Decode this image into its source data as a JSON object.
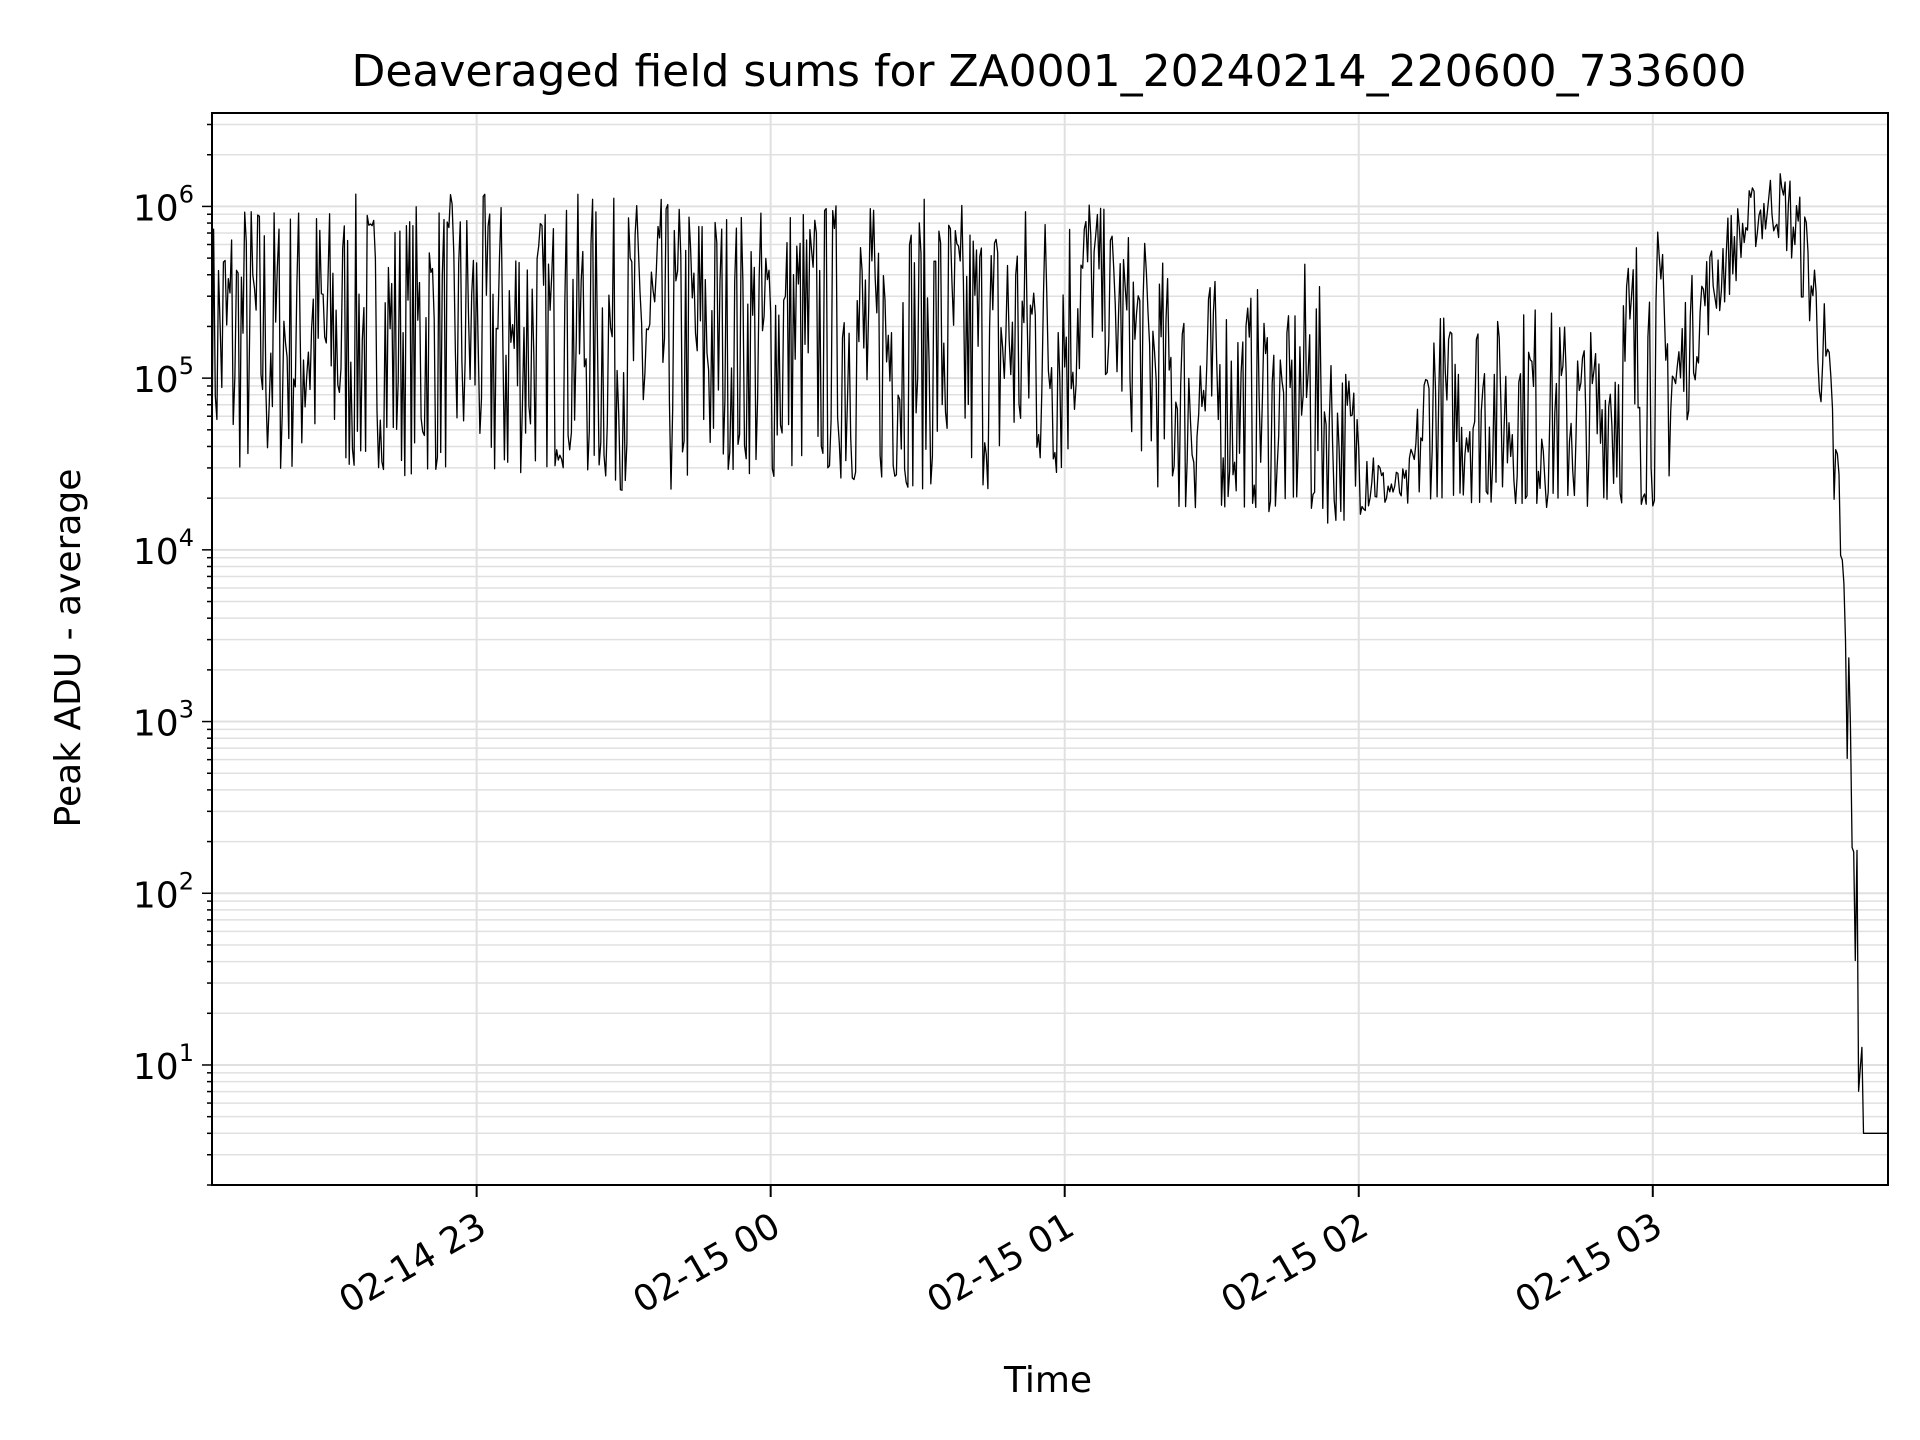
{
  "chart_data": {
    "type": "line",
    "title": "Deaveraged field sums for ZA0001_20240214_220600_733600",
    "xlabel": "Time",
    "ylabel": "Peak ADU - average",
    "yscale": "log",
    "ylim": [
      2,
      3500000
    ],
    "xlim": [
      "2024-02-14 22:06",
      "2024-02-15 03:48"
    ],
    "grid": true,
    "line_color": "#000000",
    "grid_color": "#e0e0e0",
    "x_ticks": [
      {
        "value": "2024-02-14 23:00",
        "label": "02-14 23"
      },
      {
        "value": "2024-02-15 00:00",
        "label": "02-15 00"
      },
      {
        "value": "2024-02-15 01:00",
        "label": "02-15 01"
      },
      {
        "value": "2024-02-15 02:00",
        "label": "02-15 02"
      },
      {
        "value": "2024-02-15 03:00",
        "label": "02-15 03"
      }
    ],
    "y_ticks": [
      {
        "value": 10,
        "base": "10",
        "exp": "1"
      },
      {
        "value": 100,
        "base": "10",
        "exp": "2"
      },
      {
        "value": 1000,
        "base": "10",
        "exp": "3"
      },
      {
        "value": 10000,
        "base": "10",
        "exp": "4"
      },
      {
        "value": 100000,
        "base": "10",
        "exp": "5"
      },
      {
        "value": 1000000,
        "base": "10",
        "exp": "6"
      }
    ],
    "series": [
      {
        "x": [
          "2024-02-14 22:06",
          "2024-02-14 22:10",
          "2024-02-14 22:15",
          "2024-02-14 22:20",
          "2024-02-14 22:25",
          "2024-02-14 22:30",
          "2024-02-14 22:35",
          "2024-02-14 22:40",
          "2024-02-14 22:45",
          "2024-02-14 22:50",
          "2024-02-14 22:55",
          "2024-02-14 23:00",
          "2024-02-14 23:05",
          "2024-02-14 23:10",
          "2024-02-14 23:15",
          "2024-02-14 23:20",
          "2024-02-14 23:25",
          "2024-02-14 23:30",
          "2024-02-14 23:35",
          "2024-02-14 23:40",
          "2024-02-14 23:45",
          "2024-02-14 23:50",
          "2024-02-14 23:55",
          "2024-02-15 00:00",
          "2024-02-15 00:05",
          "2024-02-15 00:10",
          "2024-02-15 00:15",
          "2024-02-15 00:20",
          "2024-02-15 00:25",
          "2024-02-15 00:30",
          "2024-02-15 00:35",
          "2024-02-15 00:40",
          "2024-02-15 00:45",
          "2024-02-15 00:50",
          "2024-02-15 00:55",
          "2024-02-15 01:00",
          "2024-02-15 01:05",
          "2024-02-15 01:10",
          "2024-02-15 01:15",
          "2024-02-15 01:20",
          "2024-02-15 01:25",
          "2024-02-15 01:30",
          "2024-02-15 01:35",
          "2024-02-15 01:40",
          "2024-02-15 01:45",
          "2024-02-15 01:50",
          "2024-02-15 01:55",
          "2024-02-15 02:00",
          "2024-02-15 02:05",
          "2024-02-15 02:10",
          "2024-02-15 02:15",
          "2024-02-15 02:20",
          "2024-02-15 02:25",
          "2024-02-15 02:30",
          "2024-02-15 02:35",
          "2024-02-15 02:40",
          "2024-02-15 02:45",
          "2024-02-15 02:50",
          "2024-02-15 02:55",
          "2024-02-15 03:00",
          "2024-02-15 03:05",
          "2024-02-15 03:10",
          "2024-02-15 03:15",
          "2024-02-15 03:20",
          "2024-02-15 03:25",
          "2024-02-15 03:28",
          "2024-02-15 03:32",
          "2024-02-15 03:35",
          "2024-02-15 03:38",
          "2024-02-15 03:40",
          "2024-02-15 03:41",
          "2024-02-15 03:42",
          "2024-02-15 03:43",
          "2024-02-15 03:44",
          "2024-02-15 03:45",
          "2024-02-15 03:46",
          "2024-02-15 03:48"
        ],
        "min": [
          40000,
          28000,
          30000,
          28000,
          30000,
          30000,
          28000,
          30000,
          27000,
          28000,
          30000,
          32000,
          20000,
          30000,
          30000,
          30000,
          25000,
          22000,
          22000,
          20000,
          25000,
          30000,
          28000,
          25000,
          30000,
          30000,
          25000,
          24000,
          25000,
          22000,
          25000,
          25000,
          22000,
          30000,
          28000,
          26000,
          170000,
          80000,
          40000,
          20000,
          16000,
          17000,
          18000,
          17000,
          16000,
          15000,
          14000,
          16000,
          18000,
          17000,
          20000,
          20000,
          18000,
          19000,
          18000,
          17000,
          17000,
          20000,
          18000,
          18000,
          30000,
          150000,
          280000,
          550000,
          700000,
          500000,
          200000,
          50000,
          5000,
          300,
          100,
          4,
          4,
          4,
          4,
          4,
          4
        ],
        "max": [
          900000,
          1200000,
          1200000,
          1100000,
          1200000,
          1100000,
          1200000,
          1100000,
          1000000,
          1200000,
          1200000,
          1200000,
          1200000,
          1100000,
          1000000,
          1200000,
          1200000,
          1100000,
          1200000,
          1100000,
          1200000,
          1100000,
          1000000,
          1100000,
          1200000,
          1100000,
          1200000,
          1100000,
          1000000,
          1100000,
          1200000,
          1100000,
          1000000,
          1100000,
          1200000,
          1200000,
          1300000,
          800000,
          700000,
          500000,
          300000,
          400000,
          300000,
          350000,
          200000,
          600000,
          150000,
          100000,
          30000,
          30000,
          300000,
          200000,
          300000,
          200000,
          300000,
          250000,
          200000,
          200000,
          700000,
          1000000,
          300000,
          500000,
          900000,
          1300000,
          1700000,
          1600000,
          900000,
          300000,
          50000,
          3000,
          500,
          200,
          4,
          4,
          4,
          4,
          4
        ]
      }
    ]
  }
}
